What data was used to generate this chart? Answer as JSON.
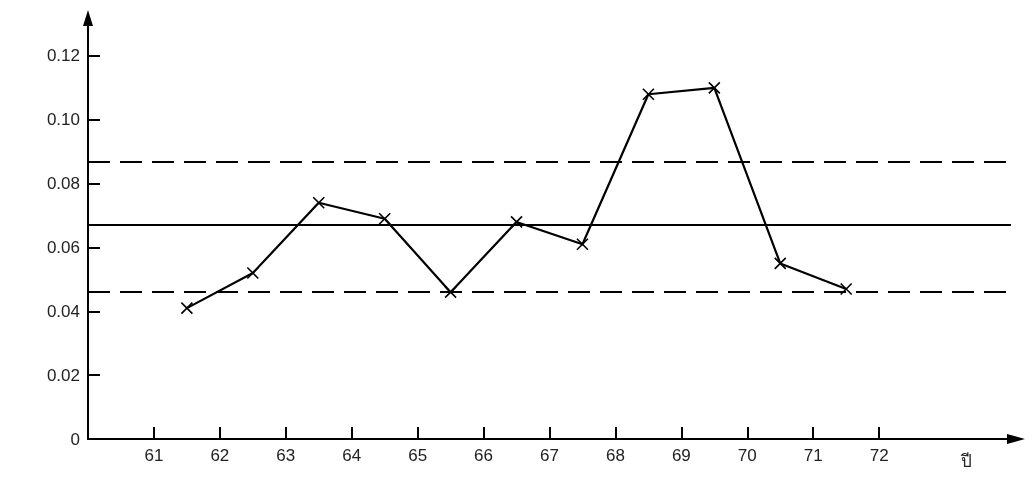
{
  "chart_data": {
    "type": "line",
    "xlabel": "ปี",
    "x": [
      61.5,
      62.5,
      63.5,
      64.5,
      65.5,
      66.5,
      67.5,
      68.5,
      69.5,
      70.5,
      71.5
    ],
    "series": [
      {
        "color": "#000000",
        "values": [
          0.041,
          0.052,
          0.074,
          0.069,
          0.046,
          0.068,
          0.061,
          0.108,
          0.11,
          0.055,
          0.047
        ]
      }
    ],
    "xlim": [
      60,
      74
    ],
    "xticks": [
      61,
      62,
      63,
      64,
      65,
      66,
      67,
      68,
      69,
      70,
      71,
      72
    ],
    "ylim": [
      0,
      0.13
    ],
    "yticks": [
      0,
      {
        "value": 0.02,
        "label": "0.02"
      },
      {
        "value": 0.04,
        "label": "0.04"
      },
      {
        "value": 0.06,
        "label": "0.06"
      },
      {
        "value": 0.08,
        "label": "0.08"
      },
      {
        "value": 0.1,
        "label": "0.10"
      },
      {
        "value": 0.12,
        "label": "0.12"
      }
    ],
    "ref_lines": [
      {
        "axis": "y",
        "value": 0.087,
        "line_style": "dashed",
        "color": "#000000"
      },
      {
        "axis": "y",
        "value": 0.067,
        "line_style": "solid",
        "color": "#000000"
      },
      {
        "axis": "y",
        "value": 0.046,
        "line_style": "dashed",
        "color": "#000000"
      }
    ],
    "marker": "cross",
    "line_style": "solid"
  }
}
